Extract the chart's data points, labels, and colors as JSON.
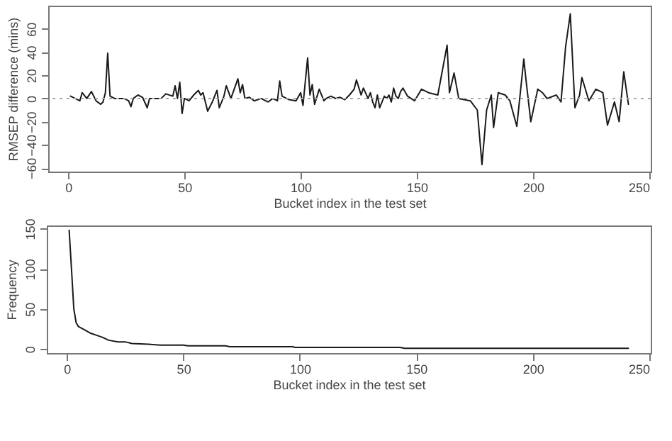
{
  "chart_data": [
    {
      "type": "line",
      "xlabel": "Bucket index in the test set",
      "ylabel": "RMSEP difference (mins)",
      "xlim": [
        -8.6,
        250.6
      ],
      "xticks": [
        0,
        50,
        100,
        150,
        200,
        250
      ],
      "ylim": [
        -63,
        80
      ],
      "yticks": [
        -60,
        -40,
        -20,
        0,
        20,
        40,
        60
      ],
      "grid": false,
      "line_style": "solid",
      "ref_lines": [
        {
          "axis": "y",
          "value": 0,
          "color": "#aaaaaa",
          "line_style": "dotted"
        }
      ],
      "x": [
        1,
        3,
        5,
        6,
        8,
        10,
        12,
        14,
        15,
        16,
        17,
        18,
        20,
        24,
        26,
        27,
        28,
        30,
        32,
        34,
        35,
        40,
        42,
        45,
        46,
        47,
        48,
        49,
        50,
        52,
        54,
        56,
        57,
        58,
        59,
        60,
        62,
        64,
        65,
        67,
        68,
        70,
        73,
        74,
        75,
        76,
        78,
        80,
        83,
        86,
        88,
        90,
        91,
        92,
        95,
        98,
        100,
        101,
        103,
        104,
        105,
        106,
        108,
        110,
        111,
        113,
        115,
        117,
        119,
        121,
        123,
        124,
        126,
        127,
        129,
        130,
        131,
        132,
        133,
        134,
        136,
        137,
        138,
        139,
        140,
        141,
        142,
        143,
        144,
        146,
        149,
        152,
        155,
        159,
        163,
        164,
        166,
        168,
        173,
        176,
        178,
        180,
        182,
        183,
        185,
        188,
        190,
        193,
        196,
        197,
        199,
        202,
        204,
        206,
        210,
        212,
        214,
        216,
        218,
        220,
        221,
        224,
        227,
        230,
        232,
        235,
        237,
        239,
        241
      ],
      "series": [
        {
          "color": "#1a1a1a",
          "values": [
            2,
            0,
            -2,
            5,
            0,
            6,
            -2,
            -5,
            -3,
            5,
            39,
            2,
            0,
            0,
            -2,
            -7,
            0,
            3,
            1,
            -8,
            0,
            0,
            4,
            2,
            11,
            0,
            14,
            -13,
            0,
            -2,
            3,
            7,
            3,
            5,
            -3,
            -11,
            -3,
            7,
            -8,
            2,
            11,
            0,
            17,
            5,
            12,
            0,
            1,
            -2,
            0,
            -3,
            0,
            -2,
            15,
            2,
            -1,
            -2,
            5,
            -6,
            35,
            3,
            12,
            -5,
            8,
            -2,
            0,
            2,
            0,
            1,
            -1,
            3,
            8,
            16,
            3,
            9,
            0,
            5,
            -3,
            -8,
            3,
            -8,
            2,
            0,
            3,
            -3,
            9,
            2,
            0,
            6,
            9,
            2,
            -2,
            8,
            5,
            3,
            46,
            5,
            22,
            0,
            -2,
            -10,
            -57,
            -10,
            3,
            -25,
            5,
            3,
            -2,
            -24,
            34,
            15,
            -20,
            8,
            5,
            0,
            3,
            -3,
            45,
            73,
            -8,
            3,
            18,
            -2,
            8,
            5,
            -23,
            -3,
            -20,
            23,
            -5
          ]
        }
      ]
    },
    {
      "type": "line",
      "xlabel": "Bucket index in the test set",
      "ylabel": "Frequency",
      "xlim": [
        -8.6,
        250.6
      ],
      "xticks": [
        0,
        50,
        100,
        150,
        200,
        250
      ],
      "ylim": [
        -5,
        154
      ],
      "yticks": [
        0,
        50,
        100,
        150
      ],
      "grid": false,
      "line_style": "solid",
      "x": [
        1,
        2,
        3,
        4,
        5,
        7,
        10,
        13,
        15,
        18,
        22,
        25,
        28,
        35,
        40,
        50,
        52,
        68,
        70,
        97,
        98,
        143,
        145,
        241
      ],
      "series": [
        {
          "color": "#1a1a1a",
          "values": [
            148,
            100,
            50,
            33,
            28,
            25,
            20,
            17,
            15,
            11,
            9,
            9,
            7,
            6,
            5,
            5,
            4,
            4,
            3,
            3,
            2,
            2,
            1,
            1
          ]
        }
      ]
    }
  ]
}
